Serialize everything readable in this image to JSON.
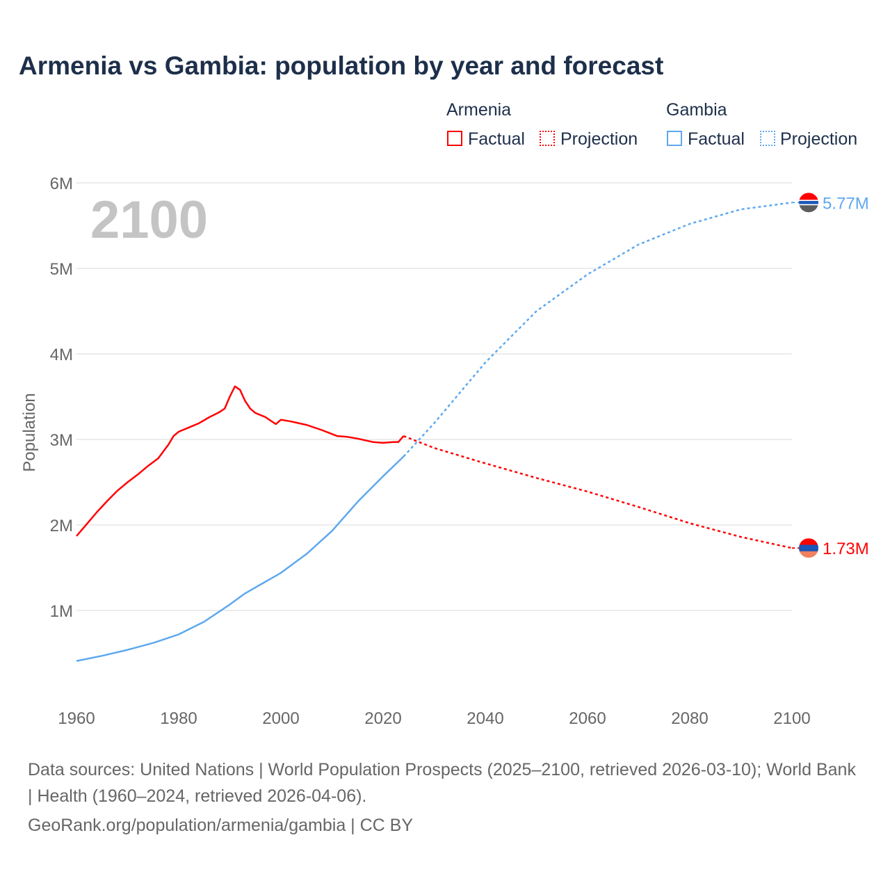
{
  "title": "Armenia vs Gambia: population by year and forecast",
  "legend": {
    "groups": [
      {
        "name": "Armenia",
        "factual": "Factual",
        "projection": "Projection",
        "color": "#ff0000"
      },
      {
        "name": "Gambia",
        "factual": "Factual",
        "projection": "Projection",
        "color": "#5ea8ee"
      }
    ]
  },
  "year_label": "2100",
  "footer": {
    "sources": "Data sources: United Nations | World Population Prospects (2025–2100, retrieved 2026-03-10); World Bank | Health (1960–2024, retrieved 2026-04-06).",
    "link": "GeoRank.org/population/armenia/gambia | CC BY"
  },
  "chart_data": {
    "type": "line",
    "title": "Armenia vs Gambia: population by year and forecast",
    "xlabel": "",
    "ylabel": "Population",
    "xlim": [
      1960,
      2100
    ],
    "ylim": [
      0,
      6
    ],
    "unit": "millions",
    "xticks": [
      1960,
      1980,
      2000,
      2020,
      2040,
      2060,
      2080,
      2100
    ],
    "xtick_labels": [
      "1960",
      "1980",
      "2000",
      "2020",
      "2040",
      "2060",
      "2080",
      "2100"
    ],
    "yticks": [
      1,
      2,
      3,
      4,
      5,
      6
    ],
    "ytick_labels": [
      "1M",
      "2M",
      "3M",
      "4M",
      "5M",
      "6M"
    ],
    "grid": true,
    "legend_position": "top-right",
    "series": [
      {
        "name": "Armenia",
        "color": "#ff0000",
        "end_label": "1.73M",
        "factual": [
          [
            1960,
            1.87
          ],
          [
            1962,
            2.01
          ],
          [
            1964,
            2.15
          ],
          [
            1966,
            2.28
          ],
          [
            1968,
            2.4
          ],
          [
            1970,
            2.5
          ],
          [
            1972,
            2.59
          ],
          [
            1974,
            2.69
          ],
          [
            1976,
            2.78
          ],
          [
            1978,
            2.94
          ],
          [
            1979,
            3.04
          ],
          [
            1980,
            3.09
          ],
          [
            1982,
            3.14
          ],
          [
            1984,
            3.19
          ],
          [
            1986,
            3.26
          ],
          [
            1988,
            3.32
          ],
          [
            1989,
            3.36
          ],
          [
            1990,
            3.5
          ],
          [
            1991,
            3.62
          ],
          [
            1992,
            3.58
          ],
          [
            1993,
            3.45
          ],
          [
            1994,
            3.36
          ],
          [
            1995,
            3.31
          ],
          [
            1997,
            3.26
          ],
          [
            1999,
            3.18
          ],
          [
            2000,
            3.23
          ],
          [
            2002,
            3.21
          ],
          [
            2005,
            3.17
          ],
          [
            2008,
            3.11
          ],
          [
            2011,
            3.04
          ],
          [
            2013,
            3.03
          ],
          [
            2015,
            3.01
          ],
          [
            2018,
            2.97
          ],
          [
            2020,
            2.96
          ],
          [
            2022,
            2.97
          ],
          [
            2023,
            2.97
          ],
          [
            2024,
            3.04
          ]
        ],
        "projection": [
          [
            2024,
            3.04
          ],
          [
            2030,
            2.9
          ],
          [
            2040,
            2.72
          ],
          [
            2050,
            2.55
          ],
          [
            2060,
            2.39
          ],
          [
            2070,
            2.21
          ],
          [
            2080,
            2.02
          ],
          [
            2090,
            1.86
          ],
          [
            2100,
            1.73
          ]
        ]
      },
      {
        "name": "Gambia",
        "color": "#5ea8ee",
        "end_label": "5.77M",
        "factual": [
          [
            1960,
            0.41
          ],
          [
            1965,
            0.47
          ],
          [
            1970,
            0.54
          ],
          [
            1975,
            0.62
          ],
          [
            1980,
            0.72
          ],
          [
            1985,
            0.87
          ],
          [
            1990,
            1.07
          ],
          [
            1993,
            1.2
          ],
          [
            2000,
            1.44
          ],
          [
            2005,
            1.66
          ],
          [
            2010,
            1.93
          ],
          [
            2015,
            2.27
          ],
          [
            2020,
            2.57
          ],
          [
            2024,
            2.8
          ]
        ],
        "projection": [
          [
            2024,
            2.8
          ],
          [
            2030,
            3.19
          ],
          [
            2040,
            3.9
          ],
          [
            2050,
            4.5
          ],
          [
            2060,
            4.93
          ],
          [
            2070,
            5.28
          ],
          [
            2080,
            5.52
          ],
          [
            2090,
            5.69
          ],
          [
            2100,
            5.77
          ]
        ]
      }
    ]
  }
}
